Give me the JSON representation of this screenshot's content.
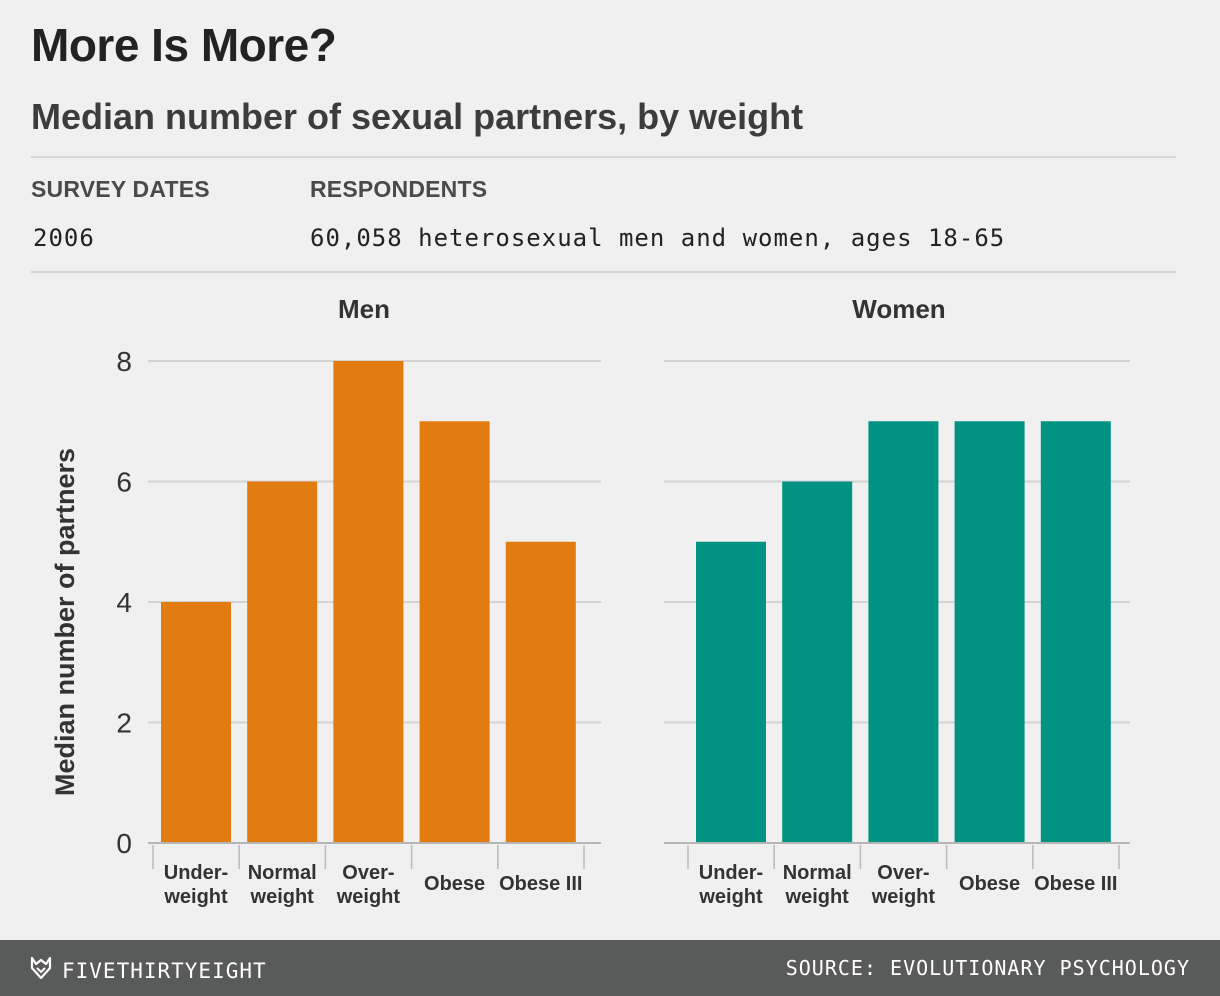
{
  "header": {
    "title": "More Is More?",
    "subtitle": "Median number of sexual partners, by weight"
  },
  "meta": {
    "survey_dates_label": "SURVEY DATES",
    "survey_dates_value": "2006",
    "respondents_label": "RESPONDENTS",
    "respondents_value": "60,058 heterosexual men and women, ages 18-65"
  },
  "footer": {
    "brand": "FIVETHIRTYEIGHT",
    "source": "SOURCE: EVOLUTIONARY PSYCHOLOGY"
  },
  "colors": {
    "men": "#e27b10",
    "women": "#009384",
    "grid": "#d3d3d3",
    "axis_text": "#333333"
  },
  "chart_data": [
    {
      "type": "bar",
      "title": "Men",
      "ylabel": "Median number of partners",
      "categories": [
        [
          "Under-",
          "weight"
        ],
        [
          "Normal",
          "weight"
        ],
        [
          "Over-",
          "weight"
        ],
        [
          "Obese"
        ],
        [
          "Obese III"
        ]
      ],
      "values": [
        4,
        6,
        8,
        7,
        5
      ],
      "ylim": [
        0,
        8
      ],
      "yticks": [
        0,
        2,
        4,
        6,
        8
      ],
      "grid": true
    },
    {
      "type": "bar",
      "title": "Women",
      "ylabel": "",
      "categories": [
        [
          "Under-",
          "weight"
        ],
        [
          "Normal",
          "weight"
        ],
        [
          "Over-",
          "weight"
        ],
        [
          "Obese"
        ],
        [
          "Obese III"
        ]
      ],
      "values": [
        5,
        6,
        7,
        7,
        7
      ],
      "ylim": [
        0,
        8
      ],
      "yticks": [
        0,
        2,
        4,
        6,
        8
      ],
      "grid": true
    }
  ]
}
